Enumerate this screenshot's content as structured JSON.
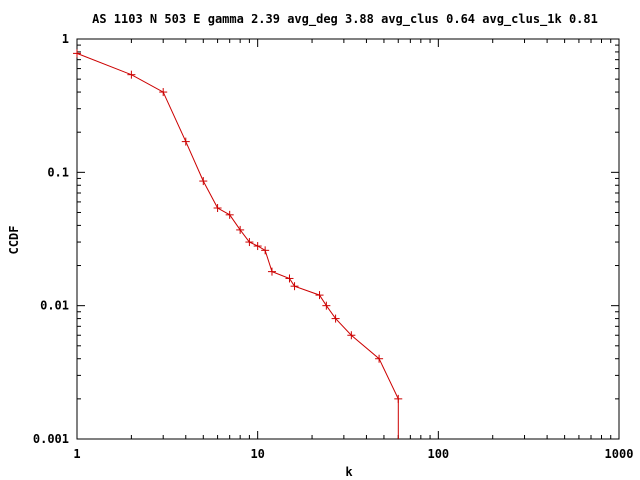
{
  "chart_data": {
    "type": "line",
    "title": "AS 1103 N 503 E gamma 2.39 avg_deg 3.88 avg_clus 0.64 avg_clus_1k 0.81",
    "xlabel": "k",
    "ylabel": "CCDF",
    "xscale": "log",
    "yscale": "log",
    "xlim": [
      1,
      1000
    ],
    "ylim": [
      0.001,
      1
    ],
    "grid": false,
    "legend": "none",
    "series_color": "#cc0000",
    "x_ticks": [
      {
        "value": 1,
        "label": "1"
      },
      {
        "value": 10,
        "label": "10"
      },
      {
        "value": 100,
        "label": "100"
      },
      {
        "value": 1000,
        "label": "1000"
      }
    ],
    "y_ticks": [
      {
        "value": 1,
        "label": "1"
      },
      {
        "value": 0.1,
        "label": "0.1"
      },
      {
        "value": 0.01,
        "label": "0.01"
      },
      {
        "value": 0.001,
        "label": "0.001"
      }
    ],
    "series": [
      {
        "x": [
          1,
          2,
          3,
          4,
          5,
          6,
          7,
          8,
          9,
          10,
          11,
          12,
          15,
          16,
          22,
          24,
          27,
          33,
          47,
          60,
          60
        ],
        "y": [
          0.78,
          0.54,
          0.4,
          0.17,
          0.086,
          0.054,
          0.048,
          0.037,
          0.03,
          0.028,
          0.026,
          0.018,
          0.016,
          0.014,
          0.012,
          0.01,
          0.008,
          0.006,
          0.004,
          0.002,
          0.001
        ]
      }
    ]
  }
}
